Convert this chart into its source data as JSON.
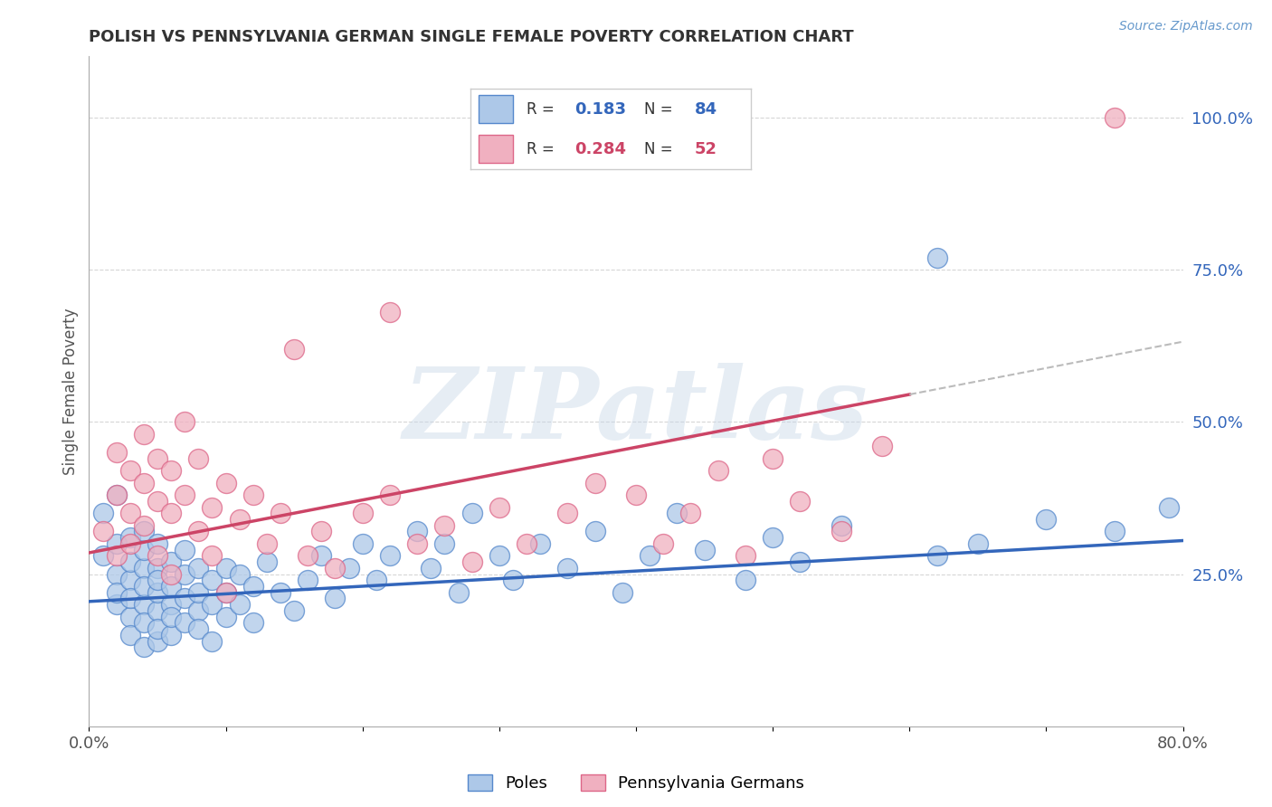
{
  "title": "POLISH VS PENNSYLVANIA GERMAN SINGLE FEMALE POVERTY CORRELATION CHART",
  "source_text": "Source: ZipAtlas.com",
  "ylabel": "Single Female Poverty",
  "xlim": [
    0.0,
    0.8
  ],
  "ylim": [
    0.0,
    1.1
  ],
  "xticks": [
    0.0,
    0.1,
    0.2,
    0.3,
    0.4,
    0.5,
    0.6,
    0.7,
    0.8
  ],
  "xticklabels": [
    "0.0%",
    "",
    "",
    "",
    "",
    "",
    "",
    "",
    "80.0%"
  ],
  "yticks_right": [
    0.25,
    0.5,
    0.75,
    1.0
  ],
  "yticklabels_right": [
    "25.0%",
    "50.0%",
    "75.0%",
    "100.0%"
  ],
  "grid_color": "#cccccc",
  "background_color": "#ffffff",
  "watermark": "ZIPatlas",
  "watermark_color": "#c8d8e8",
  "poles_color": "#adc8e8",
  "penn_german_color": "#f0b0c0",
  "poles_edge_color": "#5588cc",
  "penn_german_edge_color": "#dd6688",
  "poles_R": 0.183,
  "poles_N": 84,
  "penn_german_R": 0.284,
  "penn_german_N": 52,
  "poles_trend_color": "#3366bb",
  "penn_german_trend_color": "#cc4466",
  "dashed_line_color": "#bbbbbb",
  "legend_box_color": "#dddddd",
  "poles_x": [
    0.01,
    0.01,
    0.02,
    0.02,
    0.02,
    0.02,
    0.02,
    0.03,
    0.03,
    0.03,
    0.03,
    0.03,
    0.03,
    0.04,
    0.04,
    0.04,
    0.04,
    0.04,
    0.04,
    0.04,
    0.05,
    0.05,
    0.05,
    0.05,
    0.05,
    0.05,
    0.05,
    0.06,
    0.06,
    0.06,
    0.06,
    0.06,
    0.07,
    0.07,
    0.07,
    0.07,
    0.08,
    0.08,
    0.08,
    0.08,
    0.09,
    0.09,
    0.09,
    0.1,
    0.1,
    0.1,
    0.11,
    0.11,
    0.12,
    0.12,
    0.13,
    0.14,
    0.15,
    0.16,
    0.17,
    0.18,
    0.19,
    0.2,
    0.21,
    0.22,
    0.24,
    0.25,
    0.26,
    0.27,
    0.28,
    0.3,
    0.31,
    0.33,
    0.35,
    0.37,
    0.39,
    0.41,
    0.43,
    0.45,
    0.48,
    0.5,
    0.52,
    0.55,
    0.62,
    0.65,
    0.7,
    0.75,
    0.79,
    0.62
  ],
  "poles_y": [
    0.28,
    0.35,
    0.2,
    0.25,
    0.3,
    0.22,
    0.38,
    0.18,
    0.24,
    0.27,
    0.31,
    0.15,
    0.21,
    0.26,
    0.2,
    0.23,
    0.17,
    0.29,
    0.13,
    0.32,
    0.19,
    0.22,
    0.26,
    0.14,
    0.3,
    0.16,
    0.24,
    0.2,
    0.23,
    0.27,
    0.15,
    0.18,
    0.21,
    0.25,
    0.17,
    0.29,
    0.19,
    0.22,
    0.16,
    0.26,
    0.2,
    0.24,
    0.14,
    0.22,
    0.26,
    0.18,
    0.25,
    0.2,
    0.23,
    0.17,
    0.27,
    0.22,
    0.19,
    0.24,
    0.28,
    0.21,
    0.26,
    0.3,
    0.24,
    0.28,
    0.32,
    0.26,
    0.3,
    0.22,
    0.35,
    0.28,
    0.24,
    0.3,
    0.26,
    0.32,
    0.22,
    0.28,
    0.35,
    0.29,
    0.24,
    0.31,
    0.27,
    0.33,
    0.28,
    0.3,
    0.34,
    0.32,
    0.36,
    0.77
  ],
  "penn_german_x": [
    0.01,
    0.02,
    0.02,
    0.02,
    0.03,
    0.03,
    0.03,
    0.04,
    0.04,
    0.04,
    0.05,
    0.05,
    0.05,
    0.06,
    0.06,
    0.06,
    0.07,
    0.07,
    0.08,
    0.08,
    0.09,
    0.09,
    0.1,
    0.1,
    0.11,
    0.12,
    0.13,
    0.14,
    0.15,
    0.16,
    0.17,
    0.18,
    0.2,
    0.22,
    0.24,
    0.26,
    0.28,
    0.3,
    0.32,
    0.35,
    0.37,
    0.4,
    0.42,
    0.44,
    0.46,
    0.48,
    0.5,
    0.52,
    0.55,
    0.58,
    0.22,
    0.75
  ],
  "penn_german_y": [
    0.32,
    0.28,
    0.38,
    0.45,
    0.35,
    0.42,
    0.3,
    0.4,
    0.48,
    0.33,
    0.37,
    0.44,
    0.28,
    0.35,
    0.42,
    0.25,
    0.38,
    0.5,
    0.32,
    0.44,
    0.36,
    0.28,
    0.4,
    0.22,
    0.34,
    0.38,
    0.3,
    0.35,
    0.62,
    0.28,
    0.32,
    0.26,
    0.35,
    0.38,
    0.3,
    0.33,
    0.27,
    0.36,
    0.3,
    0.35,
    0.4,
    0.38,
    0.3,
    0.35,
    0.42,
    0.28,
    0.44,
    0.37,
    0.32,
    0.46,
    0.68,
    1.0
  ],
  "blue_trend_x0": 0.0,
  "blue_trend_y0": 0.205,
  "blue_trend_x1": 0.8,
  "blue_trend_y1": 0.305,
  "pink_trend_x0": 0.0,
  "pink_trend_y0": 0.285,
  "pink_trend_x1": 0.6,
  "pink_trend_y1": 0.545
}
